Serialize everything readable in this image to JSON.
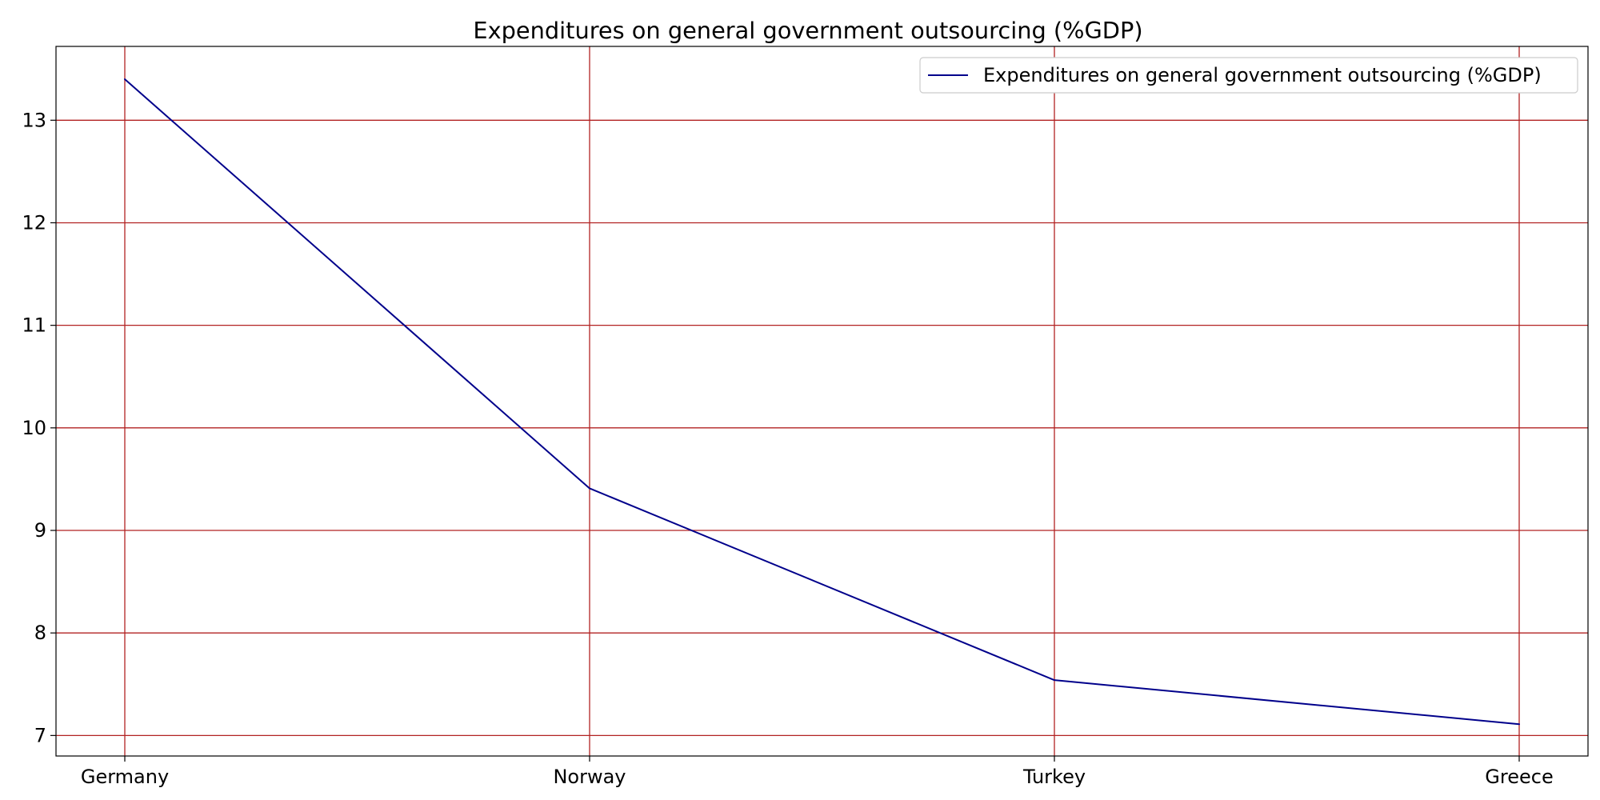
{
  "chart_data": {
    "type": "line",
    "title": "Expenditures on general government outsourcing (%GDP)",
    "xlabel": "",
    "ylabel": "",
    "categories": [
      "Germany",
      "Norway",
      "Turkey",
      "Greece"
    ],
    "series": [
      {
        "name": "Expenditures on general government outsourcing (%GDP)",
        "values": [
          13.4,
          9.41,
          7.54,
          7.11
        ],
        "color": "#00008b"
      }
    ],
    "ylim": [
      6.8,
      13.72
    ],
    "yticks": [
      7,
      8,
      9,
      10,
      11,
      12,
      13
    ],
    "grid": true,
    "grid_color": "#b22222",
    "legend_position": "top-right"
  }
}
